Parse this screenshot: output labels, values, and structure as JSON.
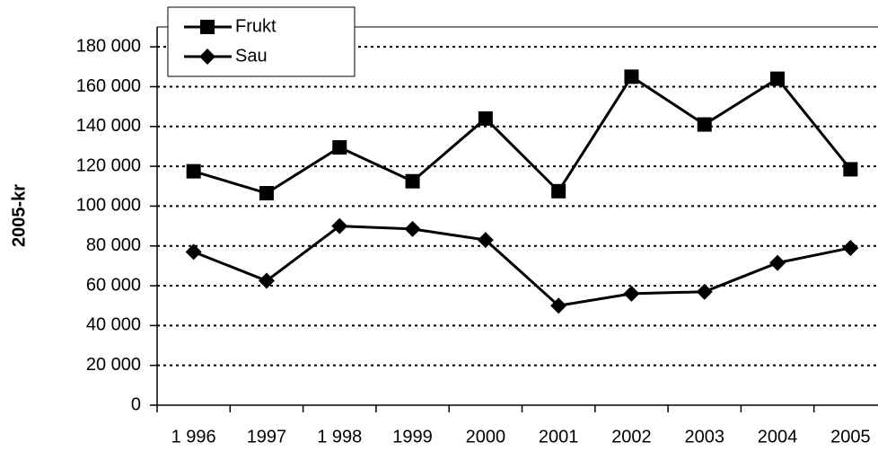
{
  "chart_data": {
    "type": "line",
    "y_label": "2005-kr",
    "categories": [
      "1 996",
      "1997",
      "1 998",
      "1999",
      "2000",
      "2001",
      "2002",
      "2003",
      "2004",
      "2005"
    ],
    "series": [
      {
        "name": "Frukt",
        "color": "#000000",
        "marker": "square",
        "values": [
          117500,
          106500,
          129500,
          112500,
          144000,
          107500,
          165000,
          141000,
          164000,
          118500
        ]
      },
      {
        "name": "Sau",
        "color": "#000000",
        "marker": "diamond",
        "values": [
          77000,
          62500,
          90000,
          88500,
          83000,
          50000,
          56000,
          57000,
          71500,
          79000
        ]
      }
    ],
    "ylim": [
      0,
      190000
    ],
    "yticks": [
      {
        "value": 0,
        "label": "0"
      },
      {
        "value": 20000,
        "label": "20 000"
      },
      {
        "value": 40000,
        "label": "40 000"
      },
      {
        "value": 60000,
        "label": "60 000"
      },
      {
        "value": 80000,
        "label": "80 000"
      },
      {
        "value": 100000,
        "label": "100 000"
      },
      {
        "value": 120000,
        "label": "120 000"
      },
      {
        "value": 140000,
        "label": "140 000"
      },
      {
        "value": 160000,
        "label": "160 000"
      },
      {
        "value": 180000,
        "label": "180 000"
      }
    ],
    "grid": true,
    "legend": "top-left"
  }
}
